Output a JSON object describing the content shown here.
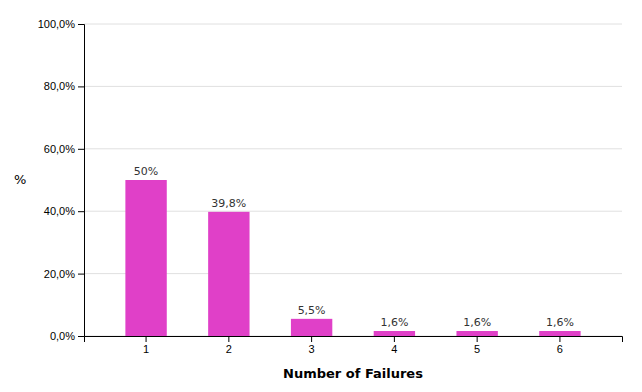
{
  "chart_data": {
    "type": "bar",
    "categories": [
      "1",
      "2",
      "3",
      "4",
      "5",
      "6"
    ],
    "values": [
      50.0,
      39.8,
      5.5,
      1.6,
      1.6,
      1.6
    ],
    "value_labels": [
      "50%",
      "39,8%",
      "5,5%",
      "1,6%",
      "1,6%",
      "1,6%"
    ],
    "data_labels": true,
    "color": "#E040C8",
    "xlabel": "Number of Failures",
    "ylabel": "%",
    "ylim": [
      0,
      100
    ],
    "yticks": [
      {
        "value": 0,
        "label": "0,0%"
      },
      {
        "value": 20,
        "label": "20,0%"
      },
      {
        "value": 40,
        "label": "40,0%"
      },
      {
        "value": 60,
        "label": "60,0%"
      },
      {
        "value": 80,
        "label": "80,0%"
      },
      {
        "value": 100,
        "label": "100,0%"
      }
    ],
    "grid": true
  }
}
